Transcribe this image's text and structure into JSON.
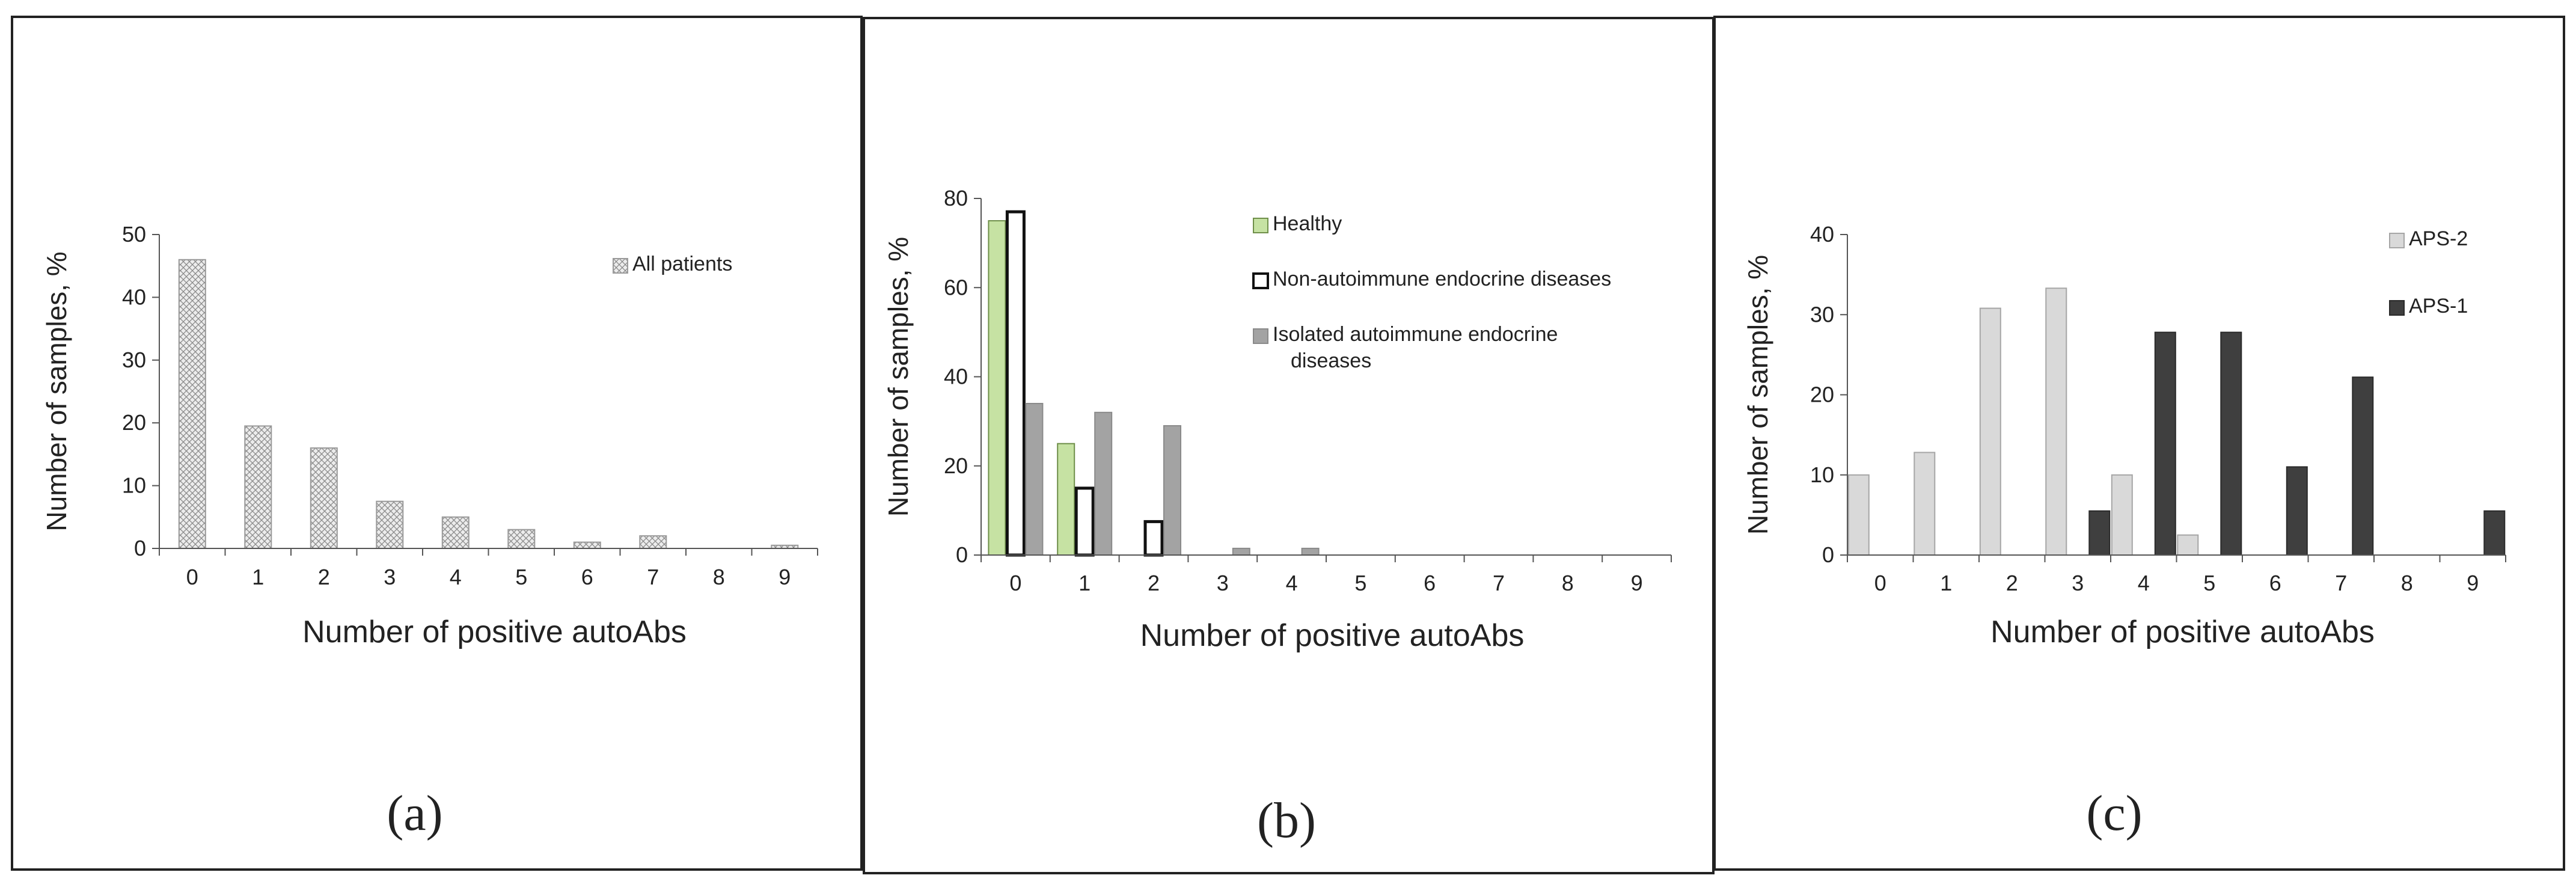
{
  "panels": [
    {
      "caption": "(a)"
    },
    {
      "caption": "(b)"
    },
    {
      "caption": "(c)"
    }
  ],
  "chart_data": [
    {
      "type": "bar",
      "title": "",
      "xlabel": "Number of positive autoAbs",
      "ylabel": "Number of samples, %",
      "categories": [
        "0",
        "1",
        "2",
        "3",
        "4",
        "5",
        "6",
        "7",
        "8",
        "9"
      ],
      "ylim": [
        0,
        50
      ],
      "yticks": [
        0,
        10,
        20,
        30,
        40,
        50
      ],
      "grid": false,
      "legend_position": "top-right",
      "series": [
        {
          "name": "All patients",
          "values": [
            46,
            19.5,
            16,
            7.5,
            5,
            3,
            1,
            2,
            0,
            0.5
          ],
          "fill": "#d6d6d6",
          "stroke": "#9a9a9a",
          "pattern": "crosshatch"
        }
      ]
    },
    {
      "type": "bar",
      "title": "",
      "xlabel": "Number of positive autoAbs",
      "ylabel": "Number of samples, %",
      "categories": [
        "0",
        "1",
        "2",
        "3",
        "4",
        "5",
        "6",
        "7",
        "8",
        "9"
      ],
      "ylim": [
        0,
        80
      ],
      "yticks": [
        0,
        20,
        40,
        60,
        80
      ],
      "grid": false,
      "legend_position": "top-right",
      "series": [
        {
          "name": "Healthy",
          "values": [
            75,
            25,
            0,
            0,
            0,
            0,
            0,
            0,
            0,
            0
          ],
          "fill": "#c6e2a3",
          "stroke": "#6f8f4a"
        },
        {
          "name": "Non-autoimmune  endocrine diseases",
          "values": [
            77,
            15,
            7.5,
            0,
            0,
            0,
            0,
            0,
            0,
            0
          ],
          "fill": "#ffffff",
          "stroke": "#111111"
        },
        {
          "name": "Isolated autoimmune endocrine diseases",
          "legend_lines": [
            "Isolated autoimmune endocrine",
            "diseases"
          ],
          "values": [
            34,
            32,
            29,
            1.5,
            1.5,
            0,
            0,
            0,
            0,
            0
          ],
          "fill": "#a3a3a3",
          "stroke": "#8a8a8a"
        }
      ]
    },
    {
      "type": "bar",
      "title": "",
      "xlabel": "Number of positive autoAbs",
      "ylabel": "Number of samples, %",
      "categories": [
        "0",
        "1",
        "2",
        "3",
        "4",
        "5",
        "6",
        "7",
        "8",
        "9"
      ],
      "ylim": [
        0,
        40
      ],
      "yticks": [
        0,
        10,
        20,
        30,
        40
      ],
      "grid": false,
      "legend_position": "top-right",
      "series": [
        {
          "name": "APS-2",
          "values": [
            10,
            12.8,
            30.8,
            33.3,
            10,
            2.5,
            0,
            0,
            0,
            0
          ],
          "fill": "#d9d9d9",
          "stroke": "#a6a6a6"
        },
        {
          "name": "APS-1",
          "values": [
            0,
            0,
            0,
            5.5,
            27.8,
            27.8,
            11,
            22.2,
            0,
            5.5
          ],
          "fill": "#3f3f3f",
          "stroke": "#2a2a2a"
        }
      ]
    }
  ]
}
